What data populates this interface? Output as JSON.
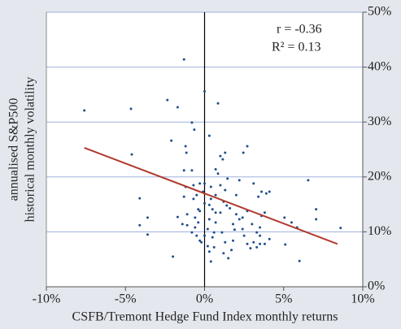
{
  "chart_data": {
    "type": "scatter",
    "x_label": "CSFB/Tremont Hedge Fund Index monthly returns",
    "y_label": [
      "annualised S&P500",
      "historical monthly volatility"
    ],
    "annotations": [
      "r = -0.36",
      "R² = 0.13"
    ],
    "xlim": [
      -10,
      10
    ],
    "xticks": [
      {
        "value": -10,
        "label": "-10%"
      },
      {
        "value": -5,
        "label": "-5%"
      },
      {
        "value": 0,
        "label": "0%"
      },
      {
        "value": 5,
        "label": "5%"
      },
      {
        "value": 10,
        "label": "10%"
      }
    ],
    "ylim": [
      0,
      50
    ],
    "yticks": [
      {
        "value": 0,
        "label": "0%"
      },
      {
        "value": 10,
        "label": "10%"
      },
      {
        "value": 20,
        "label": "20%"
      },
      {
        "value": 30,
        "label": "30%"
      },
      {
        "value": 40,
        "label": "40%"
      },
      {
        "value": 50,
        "label": "50%"
      }
    ],
    "grid": true,
    "series": [
      {
        "color": "#1f4e8c",
        "x": [
          -7.6,
          -4.65,
          -4.6,
          -4.1,
          -4.1,
          -3.6,
          -3.6,
          -2.35,
          -2.1,
          -1.7,
          -1.3,
          -0.8,
          -0.65,
          -1.2,
          -1.15,
          -1.3,
          -0.8,
          0.0,
          0.3,
          0.85,
          1.0,
          1.15,
          1.3,
          2.45,
          2.7,
          0.7,
          0.85,
          1.45,
          2.2,
          3.1,
          3.6,
          3.9,
          3.4,
          4.1,
          6.55,
          7.05,
          7.05,
          8.6,
          5.05,
          5.5,
          5.85,
          5.1,
          6.0,
          -2.0,
          -1.7,
          -1.4,
          -1.1,
          -0.6,
          -0.6,
          -0.4,
          -0.5,
          -0.3,
          -0.7,
          -0.5,
          -1.3,
          -1.2,
          -0.7,
          -0.3,
          0.0,
          0.3,
          0.4,
          0.5,
          0.7,
          1.0,
          1.2,
          1.4,
          1.6,
          2.0,
          2.2,
          2.4,
          2.5,
          2.7,
          2.9,
          3.1,
          3.3,
          3.5,
          3.5,
          3.6,
          3.8,
          1.8,
          1.3,
          1.1,
          0.5,
          0.3,
          0.6,
          1.7,
          1.8,
          1.2,
          1.5,
          0.7,
          0.3,
          0.6,
          0.2,
          0.0,
          0.2,
          0.4,
          -0.2,
          0.4,
          0.7,
          1.0,
          1.3,
          2.0,
          -0.1,
          0.0,
          -0.3,
          -1.1,
          -0.4,
          -0.8,
          1.9,
          2.4,
          2.7,
          3.0,
          3.3,
          3.8,
          4.1,
          3.5
        ],
        "values": [
          32.1,
          32.4,
          24.1,
          16.1,
          11.2,
          12.6,
          9.5,
          34.0,
          26.6,
          32.7,
          41.4,
          29.9,
          28.6,
          25.6,
          24.4,
          21.2,
          21.2,
          35.6,
          27.5,
          33.4,
          23.8,
          23.2,
          24.4,
          24.4,
          25.6,
          21.4,
          20.6,
          19.7,
          19.4,
          18.8,
          17.3,
          17.0,
          16.4,
          17.3,
          19.4,
          14.1,
          12.3,
          10.7,
          12.6,
          11.7,
          10.8,
          7.7,
          4.7,
          5.5,
          12.7,
          11.4,
          11.2,
          10.8,
          12.6,
          11.7,
          9.3,
          8.4,
          16.0,
          16.7,
          16.4,
          18.2,
          18.5,
          18.8,
          15.2,
          14.9,
          16.0,
          14.1,
          13.5,
          13.5,
          15.5,
          14.8,
          14.3,
          13.2,
          12.3,
          10.5,
          9.3,
          7.8,
          7.0,
          8.1,
          7.2,
          9.3,
          7.8,
          12.9,
          13.5,
          11.4,
          8.1,
          9.9,
          9.0,
          6.4,
          7.2,
          6.7,
          8.4,
          6.1,
          5.2,
          11.7,
          12.3,
          9.9,
          10.5,
          9.3,
          7.4,
          4.6,
          8.1,
          18.2,
          16.7,
          18.5,
          17.6,
          16.7,
          17.3,
          18.8,
          13.8,
          13.2,
          14.1,
          9.9,
          10.4,
          12.6,
          13.8,
          11.4,
          9.9,
          7.8,
          8.7,
          10.8
        ]
      }
    ],
    "trend_line": {
      "x": [
        -7.6,
        8.4
      ],
      "values": [
        25.3,
        7.8
      ],
      "color": "#b03a2e"
    }
  }
}
